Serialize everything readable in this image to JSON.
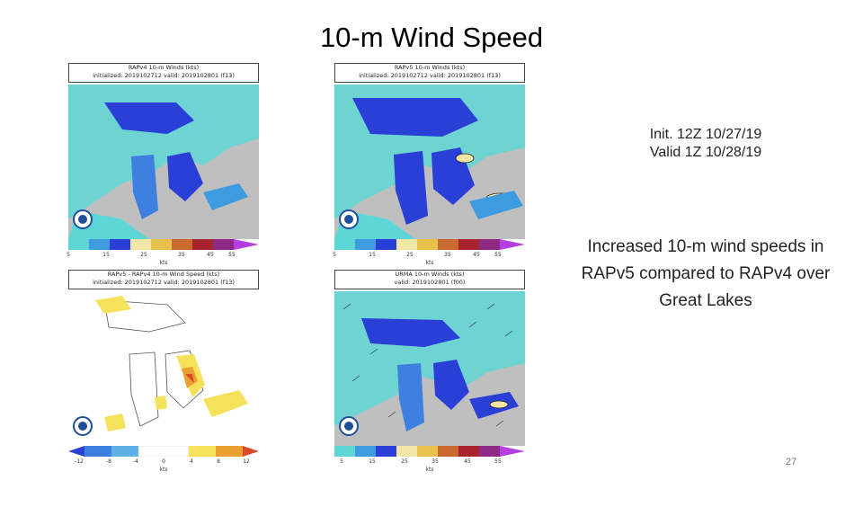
{
  "slide": {
    "title": "10-m Wind Speed",
    "init_line": "Init. 12Z 10/27/19",
    "valid_line": "Valid 1Z 10/28/19",
    "summary": "Increased 10-m wind speeds in RAPv5 compared to RAPv4 over Great Lakes",
    "page_number": "27"
  },
  "panels": [
    {
      "header_line1": "RAPv4 10-m Winds (kts)",
      "header_line2": "initialized: 2019102712 valid: 2019102801 (f13)",
      "colorbar_ticks": [
        "5",
        "15",
        "25",
        "35",
        "45",
        "55"
      ],
      "unit": "kts",
      "colors": [
        "#5fd6d6",
        "#3f9be0",
        "#2a3fd6",
        "#f2e6a6",
        "#e8c24c",
        "#c96b2e",
        "#a8232e",
        "#8e2a86",
        "#b63ee0"
      ]
    },
    {
      "header_line1": "RAPv5 10-m Winds (kts)",
      "header_line2": "initialized: 2019102712 valid: 2019102801 (f13)",
      "colorbar_ticks": [
        "5",
        "15",
        "25",
        "35",
        "45",
        "55"
      ],
      "unit": "kts",
      "colors": [
        "#5fd6d6",
        "#3f9be0",
        "#2a3fd6",
        "#f2e6a6",
        "#e8c24c",
        "#c96b2e",
        "#a8232e",
        "#8e2a86",
        "#b63ee0"
      ]
    },
    {
      "header_line1": "RAPv5 - RAPv4 10-m Wind Speed (kts)",
      "header_line2": "initialized: 2019102712 valid: 2019102801 (f13)",
      "colorbar_ticks": [
        "-12",
        "-8",
        "-4",
        "0",
        "4",
        "8",
        "12"
      ],
      "unit": "kts",
      "colors": [
        "#2a3fd6",
        "#3f7fe0",
        "#5fb0e6",
        "#ffffff",
        "#f5e15a",
        "#e8a030",
        "#d84a2a"
      ]
    },
    {
      "header_line1": "URMA 10-m Winds (kts)",
      "header_line2": "valid: 2019102801 (f00)",
      "colorbar_ticks": [
        "5",
        "15",
        "25",
        "35",
        "45",
        "55"
      ],
      "unit": "kts",
      "colors": [
        "#5fd6d6",
        "#3f9be0",
        "#2a3fd6",
        "#f2e6a6",
        "#e8c24c",
        "#c96b2e",
        "#a8232e",
        "#8e2a86",
        "#b63ee0"
      ]
    }
  ],
  "icons": {
    "logo": "noaa-logo-icon"
  }
}
